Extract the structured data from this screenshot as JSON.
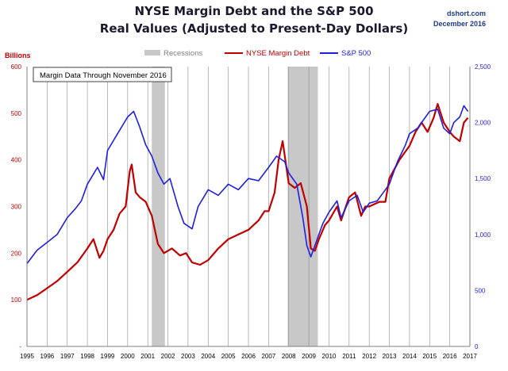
{
  "source": "dshort.com",
  "date": "December 2016",
  "chart_data": {
    "type": "line",
    "title": "NYSE Margin Debt and the S&P 500",
    "subtitle": "Real Values (Adjusted to Present-Day Dollars)",
    "left_axis_label": "Billions",
    "annotation": "Margin Data Through November 2016",
    "x_ticks": [
      "1995",
      "1996",
      "1997",
      "1998",
      "1999",
      "2000",
      "2001",
      "2002",
      "2003",
      "2004",
      "2005",
      "2006",
      "2007",
      "2008",
      "2009",
      "2010",
      "2011",
      "2012",
      "2013",
      "2014",
      "2015",
      "2016",
      "2017"
    ],
    "xlim": [
      1995,
      2017
    ],
    "y_left": {
      "lim": [
        0,
        600
      ],
      "ticks": [
        0,
        100,
        200,
        300,
        400,
        500,
        600
      ],
      "tick_labels": [
        "-",
        "100",
        "200",
        "300",
        "400",
        "500",
        "600"
      ]
    },
    "y_right": {
      "lim": [
        0,
        2500
      ],
      "ticks": [
        0,
        500,
        1000,
        1500,
        2000,
        2500
      ],
      "tick_labels": [
        "0",
        "500",
        "1,000",
        "1,500",
        "2,000",
        "2,500"
      ]
    },
    "recessions": [
      [
        2001.2,
        2001.85
      ],
      [
        2007.95,
        2009.45
      ]
    ],
    "legend": [
      {
        "name": "Recessions",
        "color": "#c8c8c8",
        "kind": "band"
      },
      {
        "name": "NYSE Margin Debt",
        "color": "#c00000",
        "kind": "line"
      },
      {
        "name": "S&P 500",
        "color": "#1f1fe0",
        "kind": "line"
      }
    ],
    "series": [
      {
        "name": "NYSE Margin Debt",
        "axis": "left",
        "color": "#c00000",
        "x": [
          1995.0,
          1995.5,
          1996.0,
          1996.5,
          1997.0,
          1997.5,
          1998.0,
          1998.3,
          1998.6,
          1998.8,
          1999.0,
          1999.3,
          1999.6,
          1999.9,
          2000.1,
          2000.2,
          2000.4,
          2000.6,
          2000.9,
          2001.2,
          2001.5,
          2001.8,
          2002.2,
          2002.6,
          2002.9,
          2003.2,
          2003.6,
          2004.0,
          2004.5,
          2005.0,
          2005.5,
          2006.0,
          2006.5,
          2006.8,
          2007.0,
          2007.3,
          2007.5,
          2007.7,
          2008.0,
          2008.3,
          2008.6,
          2008.9,
          2009.1,
          2009.3,
          2009.5,
          2009.8,
          2010.0,
          2010.4,
          2010.6,
          2011.0,
          2011.3,
          2011.6,
          2011.8,
          2012.0,
          2012.5,
          2012.8,
          2013.0,
          2013.5,
          2014.0,
          2014.3,
          2014.6,
          2014.9,
          2015.2,
          2015.4,
          2015.7,
          2016.0,
          2016.2,
          2016.5,
          2016.7,
          2016.9
        ],
        "values": [
          100,
          110,
          125,
          140,
          160,
          180,
          210,
          230,
          190,
          205,
          230,
          250,
          285,
          300,
          375,
          390,
          330,
          320,
          310,
          280,
          220,
          200,
          210,
          195,
          200,
          180,
          175,
          185,
          210,
          230,
          240,
          250,
          270,
          290,
          290,
          330,
          400,
          440,
          350,
          340,
          350,
          300,
          210,
          205,
          230,
          260,
          270,
          300,
          270,
          320,
          330,
          280,
          300,
          300,
          310,
          310,
          360,
          400,
          430,
          460,
          480,
          460,
          490,
          520,
          480,
          460,
          450,
          440,
          480,
          490
        ]
      },
      {
        "name": "S&P 500",
        "axis": "right",
        "color": "#1f1fe0",
        "x": [
          1995.0,
          1995.5,
          1996.0,
          1996.5,
          1997.0,
          1997.4,
          1997.7,
          1998.0,
          1998.5,
          1998.8,
          1999.0,
          1999.5,
          2000.0,
          2000.3,
          2000.6,
          2000.9,
          2001.2,
          2001.5,
          2001.8,
          2002.1,
          2002.5,
          2002.8,
          2003.2,
          2003.5,
          2004.0,
          2004.5,
          2005.0,
          2005.5,
          2006.0,
          2006.5,
          2007.0,
          2007.4,
          2007.8,
          2008.0,
          2008.4,
          2008.7,
          2008.9,
          2009.1,
          2009.4,
          2009.7,
          2010.0,
          2010.4,
          2010.6,
          2011.0,
          2011.4,
          2011.7,
          2012.0,
          2012.4,
          2012.8,
          2013.0,
          2013.4,
          2013.8,
          2014.0,
          2014.4,
          2014.8,
          2015.0,
          2015.4,
          2015.7,
          2016.0,
          2016.2,
          2016.5,
          2016.7,
          2016.9
        ],
        "values": [
          740,
          860,
          930,
          1000,
          1150,
          1230,
          1300,
          1450,
          1600,
          1490,
          1750,
          1900,
          2050,
          2100,
          1960,
          1800,
          1700,
          1550,
          1450,
          1500,
          1250,
          1100,
          1050,
          1250,
          1400,
          1350,
          1450,
          1400,
          1500,
          1480,
          1600,
          1700,
          1650,
          1550,
          1450,
          1150,
          900,
          800,
          950,
          1100,
          1200,
          1300,
          1150,
          1300,
          1350,
          1200,
          1280,
          1300,
          1400,
          1450,
          1650,
          1800,
          1900,
          1950,
          2050,
          2100,
          2120,
          1950,
          1900,
          2000,
          2050,
          2150,
          2100
        ]
      }
    ]
  }
}
